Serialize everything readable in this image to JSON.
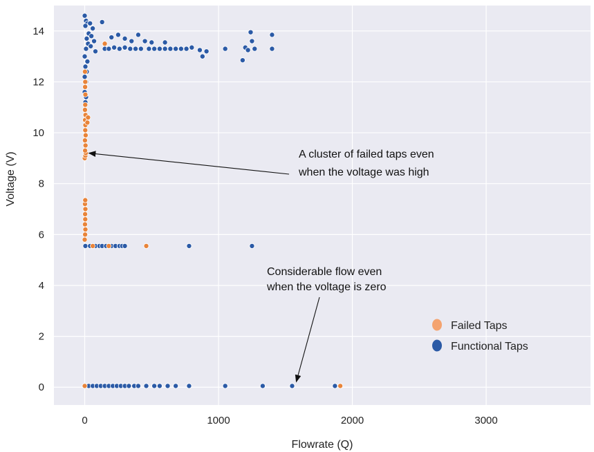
{
  "chart_data": {
    "type": "scatter",
    "title": "",
    "xlabel": "Flowrate (Q)",
    "ylabel": "Voltage (V)",
    "xlim": [
      -230,
      3780
    ],
    "ylim": [
      -0.7,
      15.0
    ],
    "x_ticks": [
      0,
      1000,
      2000,
      3000
    ],
    "y_ticks": [
      0,
      2,
      4,
      6,
      8,
      10,
      12,
      14
    ],
    "grid": true,
    "background": "#eaeaf2",
    "legend_position": "lower-right",
    "legend": [
      {
        "label": "Failed Taps",
        "color": "#f4a36f"
      },
      {
        "label": "Functional Taps",
        "color": "#2b5aa6"
      }
    ],
    "annotations": [
      {
        "lines": [
          "A cluster of failed taps even",
          "when the voltage was high"
        ],
        "arrow_to": [
          0,
          9.2
        ]
      },
      {
        "lines": [
          "Considerable flow even",
          "when the voltage is zero"
        ],
        "arrow_to": [
          1550,
          0.05
        ]
      }
    ],
    "series": [
      {
        "name": "Failed Taps",
        "color": "#e8843a",
        "points": [
          [
            0,
            9.0
          ],
          [
            5,
            9.1
          ],
          [
            8,
            9.2
          ],
          [
            3,
            9.3
          ],
          [
            6,
            9.5
          ],
          [
            2,
            9.7
          ],
          [
            7,
            9.9
          ],
          [
            4,
            10.1
          ],
          [
            5,
            10.3
          ],
          [
            3,
            10.5
          ],
          [
            6,
            10.7
          ],
          [
            2,
            10.9
          ],
          [
            4,
            11.1
          ],
          [
            5,
            11.5
          ],
          [
            3,
            11.8
          ],
          [
            4,
            12.0
          ],
          [
            2,
            12.4
          ],
          [
            25,
            10.6
          ],
          [
            20,
            10.4
          ],
          [
            0,
            5.8
          ],
          [
            3,
            6.0
          ],
          [
            5,
            6.2
          ],
          [
            2,
            6.4
          ],
          [
            4,
            6.6
          ],
          [
            3,
            6.8
          ],
          [
            5,
            7.0
          ],
          [
            2,
            7.2
          ],
          [
            4,
            7.35
          ],
          [
            150,
            13.5
          ],
          [
            60,
            5.55
          ],
          [
            180,
            5.55
          ],
          [
            460,
            5.55
          ],
          [
            1910,
            0.05
          ],
          [
            0,
            0.05
          ]
        ]
      },
      {
        "name": "Functional Taps",
        "color": "#2b5aa6",
        "points": [
          [
            0,
            14.6
          ],
          [
            10,
            14.4
          ],
          [
            20,
            14.3
          ],
          [
            5,
            14.2
          ],
          [
            40,
            14.3
          ],
          [
            60,
            14.1
          ],
          [
            30,
            13.9
          ],
          [
            50,
            13.8
          ],
          [
            15,
            13.7
          ],
          [
            70,
            13.6
          ],
          [
            25,
            13.5
          ],
          [
            45,
            13.4
          ],
          [
            10,
            13.3
          ],
          [
            80,
            13.2
          ],
          [
            0,
            13.0
          ],
          [
            20,
            12.8
          ],
          [
            5,
            12.6
          ],
          [
            15,
            12.4
          ],
          [
            0,
            12.2
          ],
          [
            10,
            12.0
          ],
          [
            5,
            11.8
          ],
          [
            0,
            11.6
          ],
          [
            10,
            11.4
          ],
          [
            5,
            11.2
          ],
          [
            130,
            14.35
          ],
          [
            200,
            13.75
          ],
          [
            250,
            13.85
          ],
          [
            300,
            13.7
          ],
          [
            350,
            13.6
          ],
          [
            400,
            13.85
          ],
          [
            450,
            13.6
          ],
          [
            500,
            13.55
          ],
          [
            600,
            13.55
          ],
          [
            150,
            13.3
          ],
          [
            180,
            13.3
          ],
          [
            220,
            13.35
          ],
          [
            260,
            13.3
          ],
          [
            300,
            13.35
          ],
          [
            340,
            13.3
          ],
          [
            380,
            13.3
          ],
          [
            420,
            13.3
          ],
          [
            480,
            13.3
          ],
          [
            520,
            13.3
          ],
          [
            560,
            13.3
          ],
          [
            600,
            13.3
          ],
          [
            640,
            13.3
          ],
          [
            680,
            13.3
          ],
          [
            720,
            13.3
          ],
          [
            760,
            13.3
          ],
          [
            800,
            13.35
          ],
          [
            860,
            13.25
          ],
          [
            880,
            13.0
          ],
          [
            910,
            13.2
          ],
          [
            1050,
            13.3
          ],
          [
            1180,
            12.85
          ],
          [
            1200,
            13.35
          ],
          [
            1220,
            13.25
          ],
          [
            1240,
            13.95
          ],
          [
            1250,
            13.6
          ],
          [
            1270,
            13.3
          ],
          [
            1400,
            13.85
          ],
          [
            1400,
            13.3
          ],
          [
            5,
            5.55
          ],
          [
            40,
            5.55
          ],
          [
            80,
            5.55
          ],
          [
            110,
            5.55
          ],
          [
            130,
            5.55
          ],
          [
            160,
            5.55
          ],
          [
            200,
            5.55
          ],
          [
            230,
            5.55
          ],
          [
            260,
            5.55
          ],
          [
            280,
            5.55
          ],
          [
            300,
            5.55
          ],
          [
            780,
            5.55
          ],
          [
            1250,
            5.55
          ],
          [
            30,
            0.05
          ],
          [
            60,
            0.05
          ],
          [
            90,
            0.05
          ],
          [
            120,
            0.05
          ],
          [
            150,
            0.05
          ],
          [
            180,
            0.05
          ],
          [
            210,
            0.05
          ],
          [
            240,
            0.05
          ],
          [
            270,
            0.05
          ],
          [
            300,
            0.05
          ],
          [
            330,
            0.05
          ],
          [
            370,
            0.05
          ],
          [
            400,
            0.05
          ],
          [
            460,
            0.05
          ],
          [
            520,
            0.05
          ],
          [
            560,
            0.05
          ],
          [
            620,
            0.05
          ],
          [
            680,
            0.05
          ],
          [
            780,
            0.05
          ],
          [
            1050,
            0.05
          ],
          [
            1330,
            0.05
          ],
          [
            1550,
            0.05
          ],
          [
            1870,
            0.05
          ]
        ]
      }
    ]
  }
}
